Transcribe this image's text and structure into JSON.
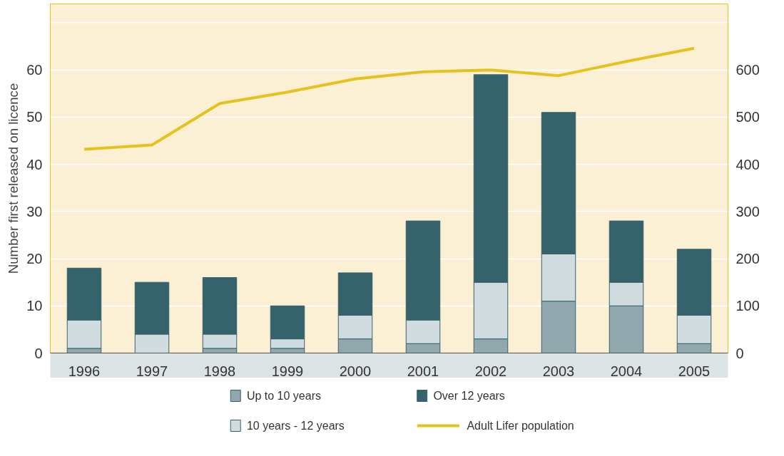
{
  "chart_data": {
    "type": "bar",
    "stacked": true,
    "ylabel": "Number first released on licence",
    "categories": [
      "1996",
      "1997",
      "1998",
      "1999",
      "2000",
      "2001",
      "2002",
      "2003",
      "2004",
      "2005"
    ],
    "series": [
      {
        "name": "Up to 10 years",
        "color": "#8fa7ad",
        "values": [
          1,
          0,
          1,
          1,
          3,
          2,
          3,
          11,
          10,
          2
        ]
      },
      {
        "name": "10 years - 12 years",
        "color": "#d0dce0",
        "values": [
          6,
          4,
          3,
          2,
          5,
          5,
          12,
          10,
          5,
          6
        ]
      },
      {
        "name": "Over 12 years",
        "color": "#36626b",
        "values": [
          11,
          11,
          12,
          7,
          9,
          21,
          44,
          30,
          13,
          14
        ]
      },
      {
        "name": "Adult Lifer population",
        "type": "line",
        "axis": "y2",
        "color": "#e6c21e",
        "line_style": "solid",
        "values": [
          432,
          441,
          529,
          553,
          581,
          596,
          600,
          588,
          618,
          646
        ]
      }
    ],
    "ylim": [
      0,
      74
    ],
    "yticks": [
      0,
      10,
      20,
      30,
      40,
      50,
      60,
      {
        "value": 70,
        "label": null
      }
    ],
    "y2lim": [
      0,
      740
    ],
    "y2ticks": [
      0,
      100,
      200,
      300,
      400,
      500,
      600
    ],
    "grid": "y",
    "legend": "bottom"
  }
}
